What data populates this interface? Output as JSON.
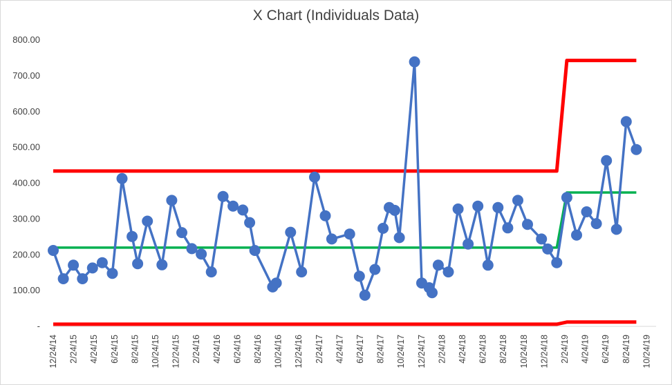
{
  "chart_data": {
    "type": "line",
    "title": "X Chart (Individuals Data)",
    "xlabel": "",
    "ylabel": "",
    "ylim": [
      0,
      800
    ],
    "grid": false,
    "legend": "none",
    "y_tick_labels": [
      "-",
      "100.00",
      "200.00",
      "300.00",
      "400.00",
      "500.00",
      "600.00",
      "700.00",
      "800.00"
    ],
    "x_tick_labels": [
      "12/24/14",
      "2/24/15",
      "4/24/15",
      "6/24/15",
      "8/24/15",
      "10/24/15",
      "12/24/15",
      "2/24/16",
      "4/24/16",
      "6/24/16",
      "8/24/16",
      "10/24/16",
      "12/24/16",
      "2/24/17",
      "4/24/17",
      "6/24/17",
      "8/24/17",
      "10/24/17",
      "12/24/17",
      "2/24/18",
      "4/24/18",
      "6/24/18",
      "8/24/18",
      "10/24/18",
      "12/24/18",
      "2/24/19",
      "4/24/19",
      "6/24/19",
      "8/24/19",
      "10/24/19"
    ],
    "x_start": "2014-12-24",
    "x_end": "2020-01-24",
    "series": [
      {
        "color": "#4472c4",
        "points": [
          [
            "2014-12-24",
            212
          ],
          [
            "2015-01-24",
            133
          ],
          [
            "2015-02-24",
            171
          ],
          [
            "2015-03-24",
            133
          ],
          [
            "2015-04-24",
            163
          ],
          [
            "2015-05-24",
            178
          ],
          [
            "2015-06-24",
            148
          ],
          [
            "2015-07-24",
            413
          ],
          [
            "2015-08-24",
            251
          ],
          [
            "2015-09-10",
            175
          ],
          [
            "2015-10-10",
            294
          ],
          [
            "2015-11-24",
            172
          ],
          [
            "2015-12-24",
            352
          ],
          [
            "2016-01-24",
            262
          ],
          [
            "2016-02-24",
            217
          ],
          [
            "2016-03-24",
            202
          ],
          [
            "2016-04-24",
            152
          ],
          [
            "2016-05-30",
            363
          ],
          [
            "2016-06-30",
            336
          ],
          [
            "2016-07-30",
            325
          ],
          [
            "2016-08-20",
            290
          ],
          [
            "2016-09-05",
            212
          ],
          [
            "2016-10-30",
            110
          ],
          [
            "2016-11-10",
            121
          ],
          [
            "2016-12-24",
            263
          ],
          [
            "2017-01-27",
            152
          ],
          [
            "2017-03-08",
            417
          ],
          [
            "2017-04-10",
            309
          ],
          [
            "2017-04-30",
            244
          ],
          [
            "2017-06-24",
            258
          ],
          [
            "2017-07-24",
            140
          ],
          [
            "2017-08-10",
            87
          ],
          [
            "2017-09-10",
            159
          ],
          [
            "2017-10-05",
            274
          ],
          [
            "2017-10-24",
            332
          ],
          [
            "2017-11-10",
            324
          ],
          [
            "2017-11-24",
            248
          ],
          [
            "2018-01-10",
            739
          ],
          [
            "2018-02-01",
            121
          ],
          [
            "2018-02-24",
            108
          ],
          [
            "2018-03-05",
            94
          ],
          [
            "2018-03-24",
            171
          ],
          [
            "2018-04-24",
            152
          ],
          [
            "2018-05-24",
            328
          ],
          [
            "2018-06-24",
            230
          ],
          [
            "2018-07-24",
            336
          ],
          [
            "2018-08-24",
            171
          ],
          [
            "2018-09-24",
            332
          ],
          [
            "2018-10-24",
            275
          ],
          [
            "2018-11-24",
            352
          ],
          [
            "2018-12-24",
            285
          ],
          [
            "2019-02-05",
            244
          ],
          [
            "2019-02-24",
            216
          ],
          [
            "2019-03-24",
            178
          ],
          [
            "2019-04-24",
            360
          ],
          [
            "2019-05-24",
            255
          ],
          [
            "2019-06-24",
            320
          ],
          [
            "2019-07-24",
            287
          ],
          [
            "2019-08-24",
            463
          ],
          [
            "2019-09-24",
            271
          ],
          [
            "2019-10-24",
            572
          ],
          [
            "2019-11-24",
            494
          ]
        ]
      },
      {
        "color": "#00b050",
        "points": [
          [
            "2014-12-24",
            220
          ],
          [
            "2019-03-24",
            220
          ],
          [
            "2019-04-24",
            374
          ],
          [
            "2019-11-24",
            374
          ]
        ]
      },
      {
        "color": "#ff0000",
        "points": [
          [
            "2014-12-24",
            434
          ],
          [
            "2019-03-24",
            434
          ],
          [
            "2019-04-24",
            743
          ],
          [
            "2019-11-24",
            743
          ]
        ]
      },
      {
        "color": "#ff0000",
        "points": [
          [
            "2014-12-24",
            6
          ],
          [
            "2019-03-24",
            6
          ],
          [
            "2019-04-24",
            12
          ],
          [
            "2019-11-24",
            12
          ]
        ]
      }
    ]
  }
}
